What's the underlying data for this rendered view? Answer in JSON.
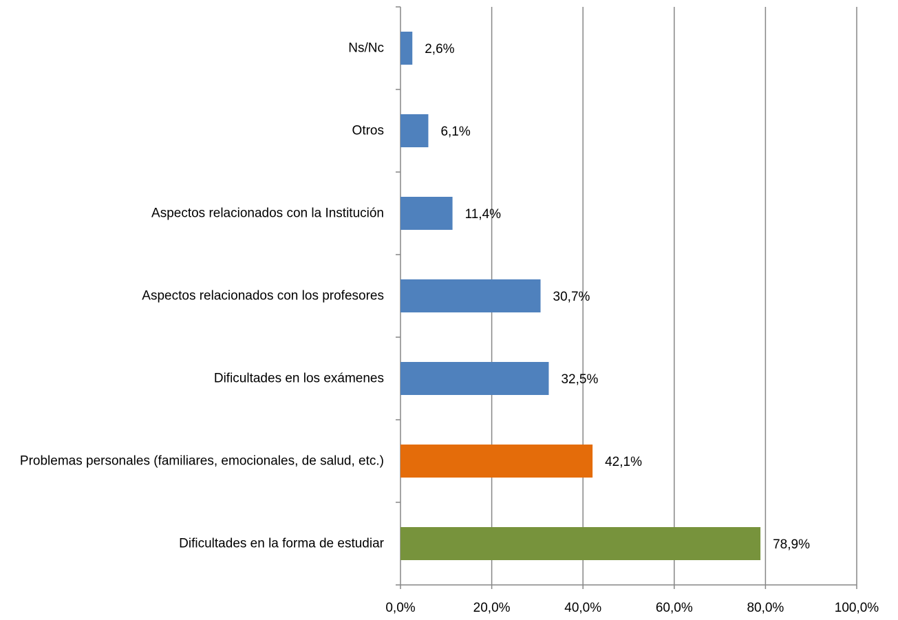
{
  "chart_data": {
    "type": "hbar",
    "categories": [
      "Ns/Nc",
      "Otros",
      "Aspectos relacionados con la Institución",
      "Aspectos relacionados con los profesores",
      "Dificultades en los exámenes",
      "Problemas personales (familiares, emocionales, de salud, etc.)",
      "Dificultades en la forma de estudiar"
    ],
    "values": [
      2.6,
      6.1,
      11.4,
      30.7,
      32.5,
      42.1,
      78.9
    ],
    "value_labels": [
      "2,6%",
      "6,1%",
      "11,4%",
      "30,7%",
      "32,5%",
      "42,1%",
      "78,9%"
    ],
    "colors": [
      "#4f81bd",
      "#4f81bd",
      "#4f81bd",
      "#4f81bd",
      "#4f81bd",
      "#e46c0a",
      "#77933c"
    ],
    "xlim": [
      0,
      100
    ],
    "xticks": [
      {
        "value": 0,
        "label": "0,0%"
      },
      {
        "value": 20,
        "label": "20,0%"
      },
      {
        "value": 40,
        "label": "40,0%"
      },
      {
        "value": 60,
        "label": "60,0%"
      },
      {
        "value": 80,
        "label": "80,0%"
      },
      {
        "value": 100,
        "label": "100,0%"
      }
    ],
    "grid": true
  }
}
